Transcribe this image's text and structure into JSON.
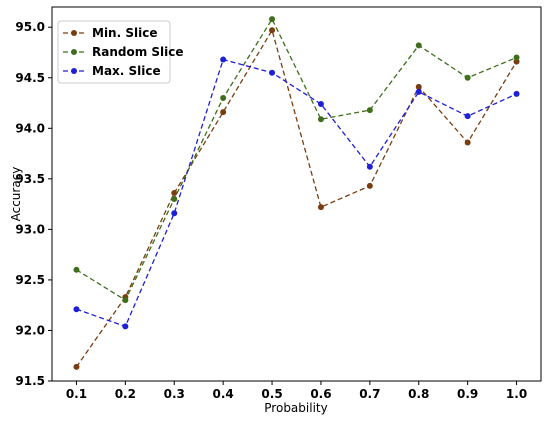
{
  "chart_data": {
    "type": "line",
    "title": "",
    "xlabel": "Probability",
    "ylabel": "Accuracy",
    "x": [
      0.1,
      0.2,
      0.3,
      0.4,
      0.5,
      0.6,
      0.7,
      0.8,
      0.9,
      1.0
    ],
    "x_tick_labels": [
      "0.1",
      "0.2",
      "0.3",
      "0.4",
      "0.5",
      "0.6",
      "0.7",
      "0.8",
      "0.9",
      "1.0"
    ],
    "ylim": [
      91.5,
      95.2
    ],
    "y_ticks": [
      91.5,
      92.0,
      92.5,
      93.0,
      93.5,
      94.0,
      94.5,
      95.0
    ],
    "y_tick_labels": [
      "91.5",
      "92.0",
      "92.5",
      "93.0",
      "93.5",
      "94.0",
      "94.5",
      "95.0"
    ],
    "grid": false,
    "legend_position": "top-left",
    "series": [
      {
        "name": "Min. Slice",
        "color": "#7a3d10",
        "values": [
          91.64,
          92.33,
          93.36,
          94.16,
          94.97,
          93.22,
          93.43,
          94.41,
          93.86,
          94.66
        ]
      },
      {
        "name": "Random Slice",
        "color": "#3f6e1d",
        "values": [
          92.6,
          92.3,
          93.3,
          94.3,
          95.08,
          94.09,
          94.18,
          94.82,
          94.5,
          94.7
        ]
      },
      {
        "name": "Max. Slice",
        "color": "#1f1fd6",
        "values": [
          92.21,
          92.04,
          93.16,
          94.68,
          94.55,
          94.24,
          93.62,
          94.36,
          94.12,
          94.34
        ]
      }
    ]
  }
}
